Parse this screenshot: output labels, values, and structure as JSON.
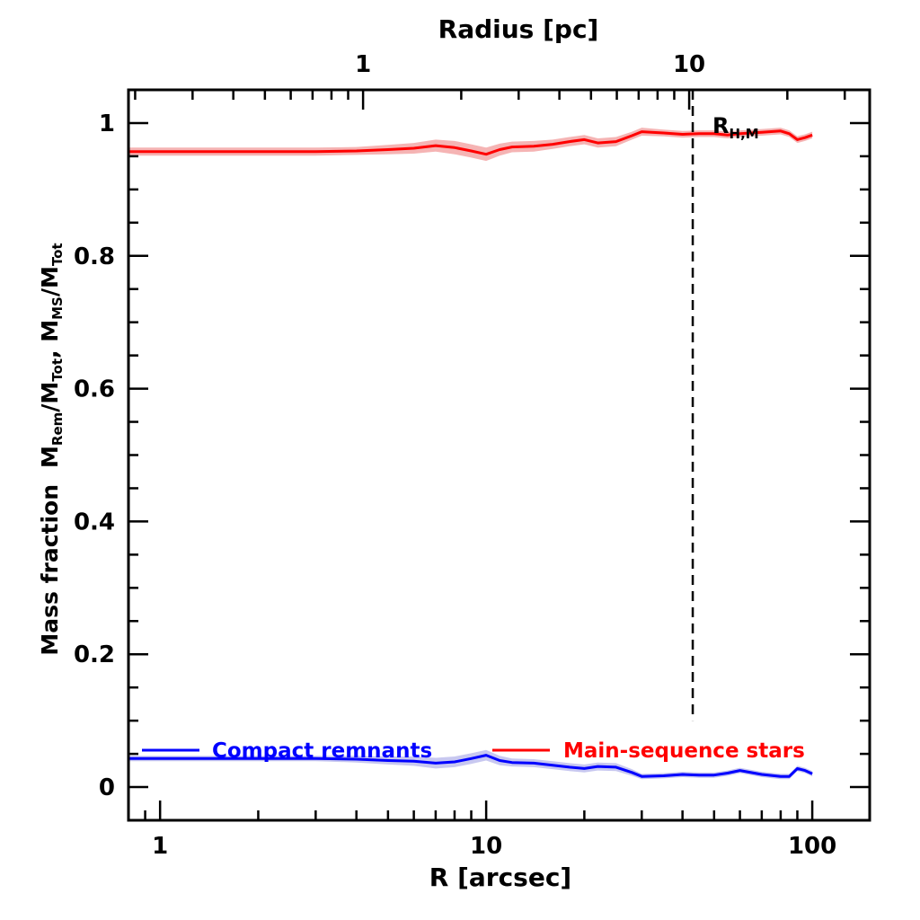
{
  "chart_data": {
    "type": "line",
    "xlabel": "R [arcsec]",
    "top_xlabel": "Radius [pc]",
    "ylabel_parts": [
      "Mass fraction",
      "M",
      "Rem",
      "/M",
      "Tot",
      ", M",
      "MS",
      "/M",
      "Tot"
    ],
    "x_scale": "log",
    "xlim": [
      0.8,
      150
    ],
    "ylim": [
      -0.05,
      1.05
    ],
    "x_ticks": [
      1,
      10,
      100
    ],
    "x_tick_labels": [
      "1",
      "10",
      "100"
    ],
    "top_x_ticks": [
      1,
      10
    ],
    "top_x_tick_labels": [
      "1",
      "10"
    ],
    "top_axis_pc_per_arcsec": 0.2385,
    "y_ticks": [
      0,
      0.2,
      0.4,
      0.6,
      0.8,
      1
    ],
    "y_tick_labels": [
      "0",
      "0.2",
      "0.4",
      "0.6",
      "0.8",
      "1"
    ],
    "grid": false,
    "legend_position": "bottom",
    "vline": {
      "x": 43,
      "label_main": "R",
      "label_sub": "H,M",
      "style": "dashed",
      "y_start": 0.1
    },
    "series": [
      {
        "name": "Compact remnants",
        "color": "#0000ff",
        "band_color": "#c8c8f0",
        "x": [
          0.8,
          1,
          2,
          3,
          4,
          5,
          6,
          7,
          8,
          9,
          10,
          11,
          12,
          14,
          16,
          18,
          20,
          22,
          25,
          28,
          30,
          35,
          40,
          45,
          50,
          55,
          60,
          70,
          80,
          85,
          90,
          95,
          100
        ],
        "y": [
          0.043,
          0.043,
          0.043,
          0.043,
          0.042,
          0.04,
          0.039,
          0.036,
          0.038,
          0.043,
          0.048,
          0.04,
          0.037,
          0.036,
          0.033,
          0.03,
          0.028,
          0.031,
          0.03,
          0.022,
          0.016,
          0.017,
          0.019,
          0.018,
          0.018,
          0.021,
          0.025,
          0.019,
          0.016,
          0.016,
          0.028,
          0.025,
          0.02
        ],
        "err": [
          0.004,
          0.004,
          0.004,
          0.004,
          0.005,
          0.006,
          0.007,
          0.008,
          0.008,
          0.008,
          0.008,
          0.007,
          0.006,
          0.006,
          0.006,
          0.006,
          0.006,
          0.006,
          0.006,
          0.005,
          0.004,
          0.004,
          0.004,
          0.004,
          0.004,
          0.004,
          0.004,
          0.004,
          0.004,
          0.004,
          0.004,
          0.004,
          0.004
        ]
      },
      {
        "name": "Main-sequence stars",
        "color": "#ff0000",
        "band_color": "#f5b4b4",
        "x": [
          0.8,
          1,
          2,
          3,
          4,
          5,
          6,
          7,
          8,
          9,
          10,
          11,
          12,
          14,
          16,
          18,
          20,
          22,
          25,
          28,
          30,
          35,
          40,
          45,
          50,
          55,
          60,
          70,
          80,
          85,
          90,
          95,
          100
        ],
        "y": [
          0.957,
          0.957,
          0.957,
          0.957,
          0.958,
          0.96,
          0.962,
          0.966,
          0.963,
          0.958,
          0.953,
          0.96,
          0.964,
          0.965,
          0.968,
          0.972,
          0.975,
          0.97,
          0.972,
          0.981,
          0.987,
          0.985,
          0.983,
          0.984,
          0.984,
          0.982,
          0.984,
          0.986,
          0.988,
          0.984,
          0.975,
          0.978,
          0.982
        ],
        "err": [
          0.006,
          0.006,
          0.006,
          0.006,
          0.006,
          0.007,
          0.008,
          0.009,
          0.01,
          0.01,
          0.01,
          0.009,
          0.008,
          0.008,
          0.007,
          0.007,
          0.007,
          0.007,
          0.007,
          0.006,
          0.006,
          0.005,
          0.005,
          0.005,
          0.005,
          0.005,
          0.005,
          0.005,
          0.005,
          0.005,
          0.005,
          0.005,
          0.005
        ]
      }
    ]
  }
}
